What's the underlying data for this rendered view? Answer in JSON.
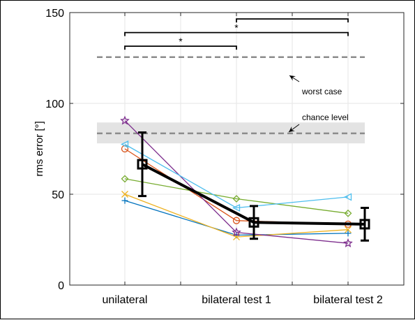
{
  "chart_data": {
    "type": "line",
    "ylabel": "rms error [°]",
    "xlabel": "",
    "ylim": [
      0,
      150
    ],
    "yticks": [
      0,
      50,
      100,
      150
    ],
    "categories": [
      "unilateral",
      "bilateral test 1",
      "bilateral test 2"
    ],
    "grid": true,
    "series": [
      {
        "marker": "plus",
        "color": "#0072BD",
        "values": [
          46.5,
          27.5,
          28.5
        ]
      },
      {
        "marker": "circle",
        "color": "#D95319",
        "values": [
          75,
          35.5,
          33.5
        ]
      },
      {
        "marker": "x",
        "color": "#EDB120",
        "values": [
          50,
          26.5,
          30.5
        ]
      },
      {
        "marker": "star",
        "color": "#7E2F8E",
        "values": [
          90.5,
          29,
          23
        ]
      },
      {
        "marker": "diamond",
        "color": "#77AC30",
        "values": [
          58.5,
          47.5,
          39.5
        ]
      },
      {
        "marker": "triangle-left",
        "color": "#4DBEEE",
        "values": [
          77.5,
          42.5,
          48.5
        ]
      }
    ],
    "mean": {
      "marker": "square",
      "color": "#000000",
      "values": [
        66.5,
        34.5,
        33.5
      ],
      "err": [
        17.5,
        9,
        9
      ]
    },
    "reference_lines": {
      "worst_case": {
        "label": "worst case",
        "value": 125.5
      },
      "chance_level": {
        "label": "chance level",
        "value": 83.5,
        "band": [
          78,
          89.5
        ]
      }
    },
    "significance": [
      {
        "from": "unilateral",
        "to": "bilateral test 1",
        "value": 131.5,
        "label": "*"
      },
      {
        "from": "unilateral",
        "to": "bilateral test 2",
        "value": 139,
        "label": "*"
      },
      {
        "from": "bilateral test 1",
        "to": "bilateral test 2",
        "value": 146.5,
        "label": ""
      }
    ]
  }
}
